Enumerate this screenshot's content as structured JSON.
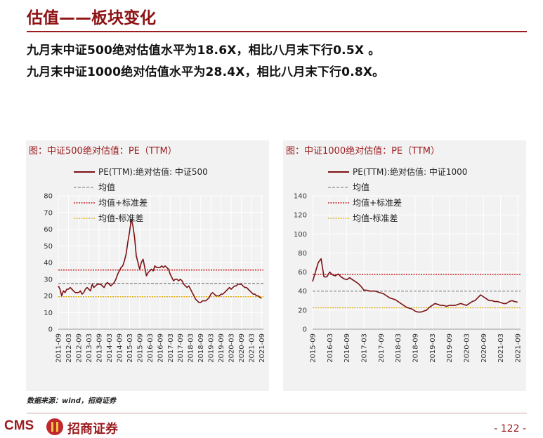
{
  "page": {
    "title": "估值——板块变化",
    "headline1": "九月末中证500绝对估值水平为18.6X，相比八月末下行0.5X 。",
    "headline2": "九月末中证1000绝对估值水平为28.4X，相比八月末下行0.8X。",
    "source": "数据来源：wind，招商证券",
    "logo_text": "CMS",
    "logo_cn": "招商证券",
    "page_number": "- 122 -"
  },
  "colors": {
    "brand": "#9b1b1e",
    "pe_line": "#7b1113",
    "mean": "#8c8c8c",
    "upper": "#c00000",
    "lower": "#e0a800",
    "panel_bg": "#f2f2f2"
  },
  "chart_data": [
    {
      "type": "line",
      "title": "图：中证500绝对估值：PE（TTM）",
      "xlabel": "",
      "ylabel": "",
      "ylim": [
        0,
        80
      ],
      "yticks": [
        0,
        10,
        20,
        30,
        40,
        50,
        60,
        70,
        80
      ],
      "xlim": [
        2011.667,
        2021.75
      ],
      "xticks": [
        "2011-09",
        "2012-03",
        "2012-09",
        "2013-03",
        "2013-09",
        "2014-03",
        "2014-09",
        "2015-03",
        "2015-09",
        "2016-03",
        "2016-09",
        "2017-03",
        "2017-09",
        "2018-03",
        "2018-09",
        "2019-03",
        "2019-09",
        "2020-03",
        "2020-09",
        "2021-03",
        "2021-09"
      ],
      "legend": [
        "PE(TTM):绝对估值: 中证500",
        "均值",
        "均值+标准差",
        "均值-标准差"
      ],
      "legend_position": "top-left",
      "grid": true,
      "series": [
        {
          "name": "PE(TTM):绝对估值: 中证500",
          "x": [
            "2011-09",
            "2011-10",
            "2011-11",
            "2011-12",
            "2012-01",
            "2012-02",
            "2012-03",
            "2012-04",
            "2012-05",
            "2012-06",
            "2012-07",
            "2012-08",
            "2012-09",
            "2012-10",
            "2012-11",
            "2012-12",
            "2013-01",
            "2013-02",
            "2013-03",
            "2013-04",
            "2013-05",
            "2013-06",
            "2013-07",
            "2013-08",
            "2013-09",
            "2013-10",
            "2013-11",
            "2013-12",
            "2014-01",
            "2014-02",
            "2014-03",
            "2014-04",
            "2014-05",
            "2014-06",
            "2014-07",
            "2014-08",
            "2014-09",
            "2014-10",
            "2014-11",
            "2014-12",
            "2015-01",
            "2015-02",
            "2015-03",
            "2015-04",
            "2015-05",
            "2015-06",
            "2015-07",
            "2015-08",
            "2015-09",
            "2015-10",
            "2015-11",
            "2015-12",
            "2016-01",
            "2016-02",
            "2016-03",
            "2016-04",
            "2016-05",
            "2016-06",
            "2016-07",
            "2016-08",
            "2016-09",
            "2016-10",
            "2016-11",
            "2016-12",
            "2017-01",
            "2017-02",
            "2017-03",
            "2017-04",
            "2017-05",
            "2017-06",
            "2017-07",
            "2017-08",
            "2017-09",
            "2017-10",
            "2017-11",
            "2017-12",
            "2018-01",
            "2018-02",
            "2018-03",
            "2018-04",
            "2018-05",
            "2018-06",
            "2018-07",
            "2018-08",
            "2018-09",
            "2018-10",
            "2018-11",
            "2018-12",
            "2019-01",
            "2019-02",
            "2019-03",
            "2019-04",
            "2019-05",
            "2019-06",
            "2019-07",
            "2019-08",
            "2019-09",
            "2019-10",
            "2019-11",
            "2019-12",
            "2020-01",
            "2020-02",
            "2020-03",
            "2020-04",
            "2020-05",
            "2020-06",
            "2020-07",
            "2020-08",
            "2020-09",
            "2020-10",
            "2020-11",
            "2020-12",
            "2021-01",
            "2021-02",
            "2021-03",
            "2021-04",
            "2021-05",
            "2021-06",
            "2021-07",
            "2021-08",
            "2021-09"
          ],
          "values": [
            26,
            24,
            20,
            23,
            22,
            24,
            24,
            25,
            24,
            23,
            22,
            22,
            22,
            23,
            21,
            22,
            24,
            25,
            24,
            23,
            27,
            25,
            26,
            27,
            27,
            27,
            26,
            25,
            27,
            28,
            27,
            26,
            27,
            28,
            30,
            33,
            35,
            37,
            38,
            41,
            45,
            52,
            58,
            66,
            62,
            55,
            44,
            40,
            36,
            40,
            42,
            37,
            32,
            34,
            35,
            36,
            35,
            38,
            37,
            37,
            37,
            38,
            37,
            38,
            37,
            36,
            33,
            31,
            29,
            30,
            30,
            29,
            30,
            29,
            27,
            26,
            25,
            26,
            24,
            22,
            20,
            18,
            17,
            16,
            16,
            17,
            17,
            17,
            18,
            19,
            21,
            22,
            21,
            20,
            20,
            20,
            21,
            21,
            22,
            23,
            24,
            25,
            24,
            25,
            26,
            26,
            27,
            27,
            27,
            26,
            25,
            25,
            24,
            23,
            22,
            21,
            21,
            20,
            20,
            19,
            18.6
          ]
        },
        {
          "name": "均值",
          "value": 27.5
        },
        {
          "name": "均值+标准差",
          "value": 35.5
        },
        {
          "name": "均值-标准差",
          "value": 19.5
        }
      ]
    },
    {
      "type": "line",
      "title": "图：中证1000绝对估值：PE（TTM）",
      "xlabel": "",
      "ylabel": "",
      "ylim": [
        0,
        140
      ],
      "yticks": [
        0,
        20,
        40,
        60,
        80,
        100,
        120,
        140
      ],
      "xlim": [
        2015.667,
        2021.75
      ],
      "xticks": [
        "2015-09",
        "2016-03",
        "2016-09",
        "2017-03",
        "2017-09",
        "2018-03",
        "2018-09",
        "2019-03",
        "2019-09",
        "2020-03",
        "2020-09",
        "2021-03",
        "2021-09"
      ],
      "legend": [
        "PE(TTM):绝对估值: 中证1000",
        "均值",
        "均值+标准差",
        "均值-标准差"
      ],
      "legend_position": "top-left",
      "grid": true,
      "series": [
        {
          "name": "PE(TTM):绝对估值: 中证1000",
          "x": [
            "2015-09",
            "2015-10",
            "2015-11",
            "2015-12",
            "2016-01",
            "2016-02",
            "2016-03",
            "2016-04",
            "2016-05",
            "2016-06",
            "2016-07",
            "2016-08",
            "2016-09",
            "2016-10",
            "2016-11",
            "2016-12",
            "2017-01",
            "2017-02",
            "2017-03",
            "2017-04",
            "2017-05",
            "2017-06",
            "2017-07",
            "2017-08",
            "2017-09",
            "2017-10",
            "2017-11",
            "2017-12",
            "2018-01",
            "2018-02",
            "2018-03",
            "2018-04",
            "2018-05",
            "2018-06",
            "2018-07",
            "2018-08",
            "2018-09",
            "2018-10",
            "2018-11",
            "2018-12",
            "2019-01",
            "2019-02",
            "2019-03",
            "2019-04",
            "2019-05",
            "2019-06",
            "2019-07",
            "2019-08",
            "2019-09",
            "2019-10",
            "2019-11",
            "2019-12",
            "2020-01",
            "2020-02",
            "2020-03",
            "2020-04",
            "2020-05",
            "2020-06",
            "2020-07",
            "2020-08",
            "2020-09",
            "2020-10",
            "2020-11",
            "2020-12",
            "2021-01",
            "2021-02",
            "2021-03",
            "2021-04",
            "2021-05",
            "2021-06",
            "2021-07",
            "2021-08",
            "2021-09"
          ],
          "values": [
            50,
            60,
            70,
            74,
            55,
            55,
            60,
            57,
            56,
            58,
            55,
            53,
            52,
            54,
            52,
            50,
            48,
            45,
            41,
            41,
            40,
            40,
            40,
            39,
            38,
            37,
            35,
            33,
            32,
            31,
            29,
            27,
            25,
            23,
            22,
            21,
            19,
            18,
            18,
            19,
            20,
            23,
            25,
            27,
            26,
            25,
            25,
            24,
            25,
            25,
            25,
            26,
            27,
            26,
            25,
            27,
            29,
            30,
            33,
            36,
            34,
            32,
            30,
            30,
            29,
            29,
            28,
            27,
            27,
            29,
            30,
            29,
            28.4
          ]
        },
        {
          "name": "均值",
          "value": 40
        },
        {
          "name": "均值+标准差",
          "value": 57.5
        },
        {
          "name": "均值-标准差",
          "value": 22.5
        }
      ]
    }
  ]
}
